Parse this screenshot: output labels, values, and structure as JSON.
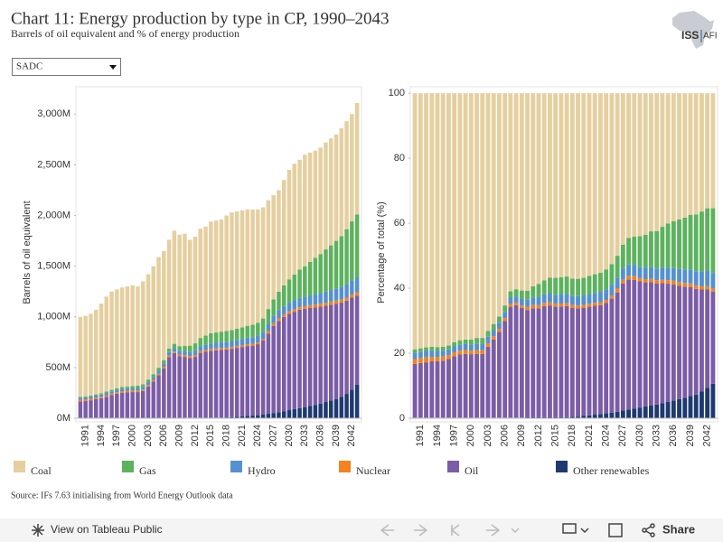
{
  "header": {
    "title": "Chart 11: Energy production by type in CP, 1990–2043",
    "subtitle": "Barrels of oil equivalent and % of energy production"
  },
  "logo": [
    "ISS",
    "AFI"
  ],
  "filter": {
    "selected": "SADC"
  },
  "source": "Source: IFs 7.63 initialising from World Energy Outlook data",
  "toolbar": {
    "view": "View on Tableau Public",
    "share": "Share"
  },
  "chart_data": [
    {
      "type": "stacked-bar",
      "y_label": "Barrels of oil equivalent",
      "categories": [
        null,
        "1991",
        null,
        null,
        "1994",
        null,
        null,
        "1997",
        null,
        null,
        "2000",
        null,
        null,
        "2003",
        null,
        null,
        "2006",
        null,
        null,
        "2009",
        null,
        null,
        "2012",
        null,
        null,
        "2015",
        null,
        null,
        "2018",
        null,
        null,
        "2021",
        null,
        null,
        "2024",
        null,
        null,
        "2027",
        null,
        null,
        "2030",
        null,
        null,
        "2033",
        null,
        null,
        "2036",
        null,
        null,
        "2039",
        null,
        null,
        "2042",
        null
      ],
      "ylim": [
        0,
        3270
      ],
      "yticks": [
        {
          "value": 0,
          "label": "0M"
        },
        {
          "value": 500,
          "label": "500M"
        },
        {
          "value": 1000,
          "label": "1,000M"
        },
        {
          "value": 1500,
          "label": "1,500M"
        },
        {
          "value": 2000,
          "label": "2,000M"
        },
        {
          "value": 2500,
          "label": "2,500M"
        },
        {
          "value": 3000,
          "label": "3,000M"
        }
      ],
      "grid": false,
      "series": [
        {
          "name": "Coal",
          "color": "#e5cf9f",
          "values": [
            788,
            793,
            806,
            835,
            883,
            937,
            970,
            974,
            982,
            986,
            992,
            979,
            1016,
            1038,
            1065,
            1092,
            1077,
            1072,
            1116,
            1099,
            1107,
            1044,
            1051,
            1078,
            1075,
            1102,
            1104,
            1106,
            1140,
            1160,
            1158,
            1153,
            1148,
            1138,
            1118,
            1096,
            1073,
            1027,
            1001,
            1038,
            1080,
            1092,
            1084,
            1101,
            1078,
            1058,
            1050,
            1055,
            1055,
            1050,
            1065,
            1065,
            1058,
            1100
          ]
        },
        {
          "name": "Gas",
          "color": "#5cb25d",
          "values": [
            10,
            10,
            11,
            12,
            13,
            14,
            15,
            16,
            17,
            18,
            20,
            22,
            24,
            26,
            28,
            30,
            33,
            36,
            40,
            45,
            50,
            60,
            70,
            80,
            90,
            100,
            102,
            104,
            106,
            108,
            110,
            114,
            118,
            122,
            126,
            130,
            145,
            160,
            185,
            205,
            230,
            255,
            280,
            300,
            330,
            360,
            385,
            415,
            440,
            470,
            500,
            540,
            580,
            620
          ]
        },
        {
          "name": "Hydro",
          "color": "#5591d0",
          "values": [
            20,
            20,
            21,
            21,
            22,
            22,
            23,
            23,
            24,
            24,
            25,
            26,
            27,
            28,
            29,
            30,
            32,
            34,
            36,
            38,
            40,
            43,
            46,
            49,
            52,
            55,
            56,
            57,
            58,
            59,
            60,
            62,
            64,
            66,
            68,
            70,
            73,
            76,
            79,
            82,
            85,
            88,
            91,
            94,
            97,
            100,
            105,
            110,
            115,
            120,
            125,
            135,
            142,
            150
          ]
        },
        {
          "name": "Nuclear",
          "color": "#f5821f",
          "values": [
            15,
            15,
            15,
            15,
            15,
            15,
            15,
            15,
            15,
            15,
            15,
            15,
            15,
            15,
            15,
            15,
            15,
            15,
            15,
            15,
            18,
            18,
            18,
            18,
            18,
            18,
            18,
            18,
            18,
            18,
            18,
            18,
            18,
            18,
            18,
            18,
            25,
            25,
            25,
            25,
            25,
            25,
            25,
            25,
            25,
            30,
            30,
            30,
            30,
            30,
            30,
            30,
            30,
            30
          ]
        },
        {
          "name": "Oil",
          "color": "#7b5ca6",
          "values": [
            165,
            170,
            175,
            185,
            195,
            210,
            225,
            240,
            250,
            255,
            255,
            255,
            265,
            310,
            360,
            420,
            490,
            600,
            640,
            610,
            600,
            590,
            600,
            640,
            650,
            660,
            665,
            670,
            670,
            675,
            680,
            685,
            690,
            690,
            700,
            730,
            790,
            860,
            900,
            930,
            950,
            960,
            970,
            970,
            970,
            960,
            955,
            950,
            945,
            940,
            930,
            920,
            910,
            880
          ]
        },
        {
          "name": "Other renewables",
          "color": "#1e3a70",
          "values": [
            2,
            2,
            2,
            2,
            2,
            2,
            2,
            2,
            2,
            2,
            3,
            3,
            3,
            3,
            3,
            3,
            3,
            3,
            3,
            3,
            5,
            5,
            5,
            5,
            5,
            5,
            5,
            5,
            8,
            10,
            14,
            18,
            22,
            26,
            30,
            36,
            44,
            52,
            60,
            70,
            80,
            90,
            100,
            110,
            120,
            132,
            145,
            160,
            175,
            190,
            210,
            240,
            280,
            330
          ]
        }
      ]
    },
    {
      "type": "stacked-bar",
      "y_label": "Percentage of total (%)",
      "categories": [
        null,
        "1991",
        null,
        null,
        "1994",
        null,
        null,
        "1997",
        null,
        null,
        "2000",
        null,
        null,
        "2003",
        null,
        null,
        "2006",
        null,
        null,
        "2009",
        null,
        null,
        "2012",
        null,
        null,
        "2015",
        null,
        null,
        "2018",
        null,
        null,
        "2021",
        null,
        null,
        "2024",
        null,
        null,
        "2027",
        null,
        null,
        "2030",
        null,
        null,
        "2033",
        null,
        null,
        "2036",
        null,
        null,
        "2039",
        null,
        null,
        "2042",
        null
      ],
      "ylim": [
        0,
        102
      ],
      "yticks": [
        0,
        20,
        40,
        60,
        80,
        100
      ],
      "grid": false,
      "series": [
        {
          "name": "Coal",
          "color": "#e5cf9f",
          "values": [
            78.8,
            78.5,
            78.2,
            78.0,
            78.1,
            78.0,
            77.6,
            76.6,
            76.0,
            75.8,
            75.8,
            75.3,
            75.3,
            73.1,
            71.0,
            68.7,
            65.3,
            60.9,
            60.3,
            60.7,
            60.8,
            59.4,
            58.7,
            57.6,
            56.7,
            56.8,
            56.6,
            56.4,
            57.0,
            57.1,
            56.8,
            56.2,
            55.7,
            55.2,
            54.2,
            52.6,
            50.0,
            46.6,
            44.5,
            44.1,
            44.0,
            43.5,
            42.5,
            42.4,
            41.1,
            40.1,
            39.4,
            38.8,
            38.3,
            37.4,
            37.3,
            36.4,
            35.4,
            35.4
          ]
        },
        {
          "name": "Gas",
          "color": "#5cb25d",
          "values": [
            1.0,
            1.0,
            1.1,
            1.1,
            1.2,
            1.2,
            1.2,
            1.3,
            1.3,
            1.4,
            1.5,
            1.7,
            1.8,
            1.8,
            1.9,
            1.9,
            2.0,
            2.0,
            2.2,
            2.5,
            2.7,
            3.4,
            3.9,
            4.3,
            4.8,
            5.2,
            5.2,
            5.3,
            5.3,
            5.3,
            5.4,
            5.6,
            5.7,
            5.9,
            6.1,
            6.3,
            6.7,
            7.3,
            8.2,
            8.7,
            9.4,
            10.2,
            11.0,
            11.5,
            12.6,
            13.6,
            14.4,
            15.3,
            15.9,
            16.8,
            17.5,
            18.4,
            19.3,
            19.9
          ]
        },
        {
          "name": "Hydro",
          "color": "#5591d0",
          "values": [
            2.0,
            2.0,
            2.0,
            2.0,
            1.9,
            1.8,
            1.8,
            1.8,
            1.9,
            1.8,
            1.9,
            2.0,
            2.0,
            2.0,
            1.9,
            1.9,
            1.9,
            1.9,
            1.9,
            2.1,
            2.2,
            2.4,
            2.6,
            2.6,
            2.8,
            2.8,
            2.9,
            2.9,
            2.9,
            2.9,
            2.9,
            3.0,
            3.1,
            3.2,
            3.3,
            3.4,
            3.4,
            3.5,
            3.5,
            3.5,
            3.5,
            3.5,
            3.6,
            3.6,
            3.7,
            3.8,
            3.9,
            4.0,
            4.2,
            4.3,
            4.4,
            4.6,
            4.7,
            4.8
          ]
        },
        {
          "name": "Nuclear",
          "color": "#f5821f",
          "values": [
            1.5,
            1.5,
            1.5,
            1.4,
            1.3,
            1.3,
            1.2,
            1.2,
            1.2,
            1.2,
            1.1,
            1.2,
            1.1,
            1.1,
            1.0,
            0.9,
            0.9,
            0.9,
            0.8,
            0.8,
            1.0,
            1.0,
            1.0,
            1.0,
            1.0,
            0.9,
            0.9,
            0.9,
            0.9,
            0.9,
            0.9,
            0.9,
            0.9,
            0.9,
            0.9,
            0.9,
            1.2,
            1.1,
            1.1,
            1.1,
            1.0,
            1.0,
            1.0,
            1.0,
            1.0,
            1.1,
            1.1,
            1.1,
            1.1,
            1.1,
            1.0,
            1.0,
            1.0,
            1.0
          ]
        },
        {
          "name": "Oil",
          "color": "#7b5ca6",
          "values": [
            16.5,
            16.8,
            17.0,
            17.3,
            17.3,
            17.5,
            18.0,
            18.9,
            19.4,
            19.6,
            19.5,
            19.6,
            19.6,
            21.8,
            24.0,
            26.4,
            29.7,
            34.1,
            34.6,
            33.7,
            33.0,
            33.5,
            33.5,
            34.2,
            34.4,
            34.0,
            34.1,
            34.2,
            33.5,
            33.3,
            33.3,
            33.4,
            33.5,
            33.5,
            34.0,
            35.1,
            36.7,
            39.1,
            40.0,
            39.6,
            38.8,
            38.2,
            38.0,
            37.3,
            37.0,
            36.4,
            35.8,
            34.9,
            34.2,
            33.6,
            32.5,
            31.4,
            30.3,
            28.3
          ]
        },
        {
          "name": "Other renewables",
          "color": "#1e3a70",
          "values": [
            0.2,
            0.2,
            0.2,
            0.2,
            0.2,
            0.2,
            0.2,
            0.2,
            0.2,
            0.2,
            0.2,
            0.2,
            0.2,
            0.2,
            0.2,
            0.2,
            0.2,
            0.2,
            0.2,
            0.2,
            0.3,
            0.3,
            0.3,
            0.3,
            0.3,
            0.3,
            0.3,
            0.3,
            0.4,
            0.5,
            0.7,
            0.9,
            1.1,
            1.3,
            1.5,
            1.7,
            2.0,
            2.4,
            2.7,
            3.0,
            3.3,
            3.6,
            3.9,
            4.2,
            4.6,
            5.0,
            5.4,
            5.9,
            6.3,
            6.8,
            7.3,
            8.2,
            9.3,
            10.6
          ]
        }
      ]
    }
  ]
}
